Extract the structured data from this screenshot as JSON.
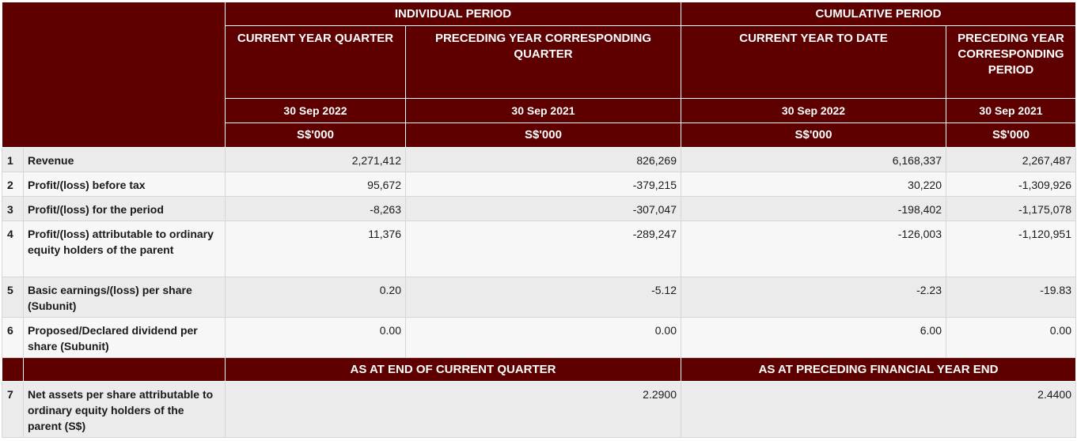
{
  "header": {
    "individual_period": "INDIVIDUAL PERIOD",
    "cumulative_period": "CUMULATIVE PERIOD",
    "columns": [
      {
        "title": "CURRENT YEAR QUARTER",
        "date": "30 Sep 2022",
        "unit": "S$'000"
      },
      {
        "title": "PRECEDING YEAR CORRESPONDING QUARTER",
        "date": "30 Sep 2021",
        "unit": "S$'000"
      },
      {
        "title": "CURRENT YEAR TO DATE",
        "date": "30 Sep 2022",
        "unit": "S$'000"
      },
      {
        "title": "PRECEDING YEAR CORRESPONDING PERIOD",
        "date": "30 Sep 2021",
        "unit": "S$'000"
      }
    ]
  },
  "rows": [
    {
      "no": "1",
      "label": "Revenue",
      "values": [
        "2,271,412",
        "826,269",
        "6,168,337",
        "2,267,487"
      ]
    },
    {
      "no": "2",
      "label": "Profit/(loss) before tax",
      "values": [
        "95,672",
        "-379,215",
        "30,220",
        "-1,309,926"
      ]
    },
    {
      "no": "3",
      "label": "Profit/(loss) for the period",
      "values": [
        "-8,263",
        "-307,047",
        "-198,402",
        "-1,175,078"
      ]
    },
    {
      "no": "4",
      "label": "Profit/(loss) attributable to ordinary equity holders of the parent",
      "values": [
        "11,376",
        "-289,247",
        "-126,003",
        "-1,120,951"
      ]
    },
    {
      "no": "5",
      "label": "Basic earnings/(loss) per share (Subunit)",
      "values": [
        "0.20",
        "-5.12",
        "-2.23",
        "-19.83"
      ]
    },
    {
      "no": "6",
      "label": "Proposed/Declared dividend per share (Subunit)",
      "values": [
        "0.00",
        "0.00",
        "6.00",
        "0.00"
      ]
    }
  ],
  "nav_section": {
    "col_current": "AS AT END OF CURRENT QUARTER",
    "col_preceding": "AS AT PRECEDING FINANCIAL YEAR END",
    "row": {
      "no": "7",
      "label": "Net assets per share attributable to ordinary equity holders of the parent (S$)",
      "current": "2.2900",
      "preceding": "2.4400"
    }
  }
}
